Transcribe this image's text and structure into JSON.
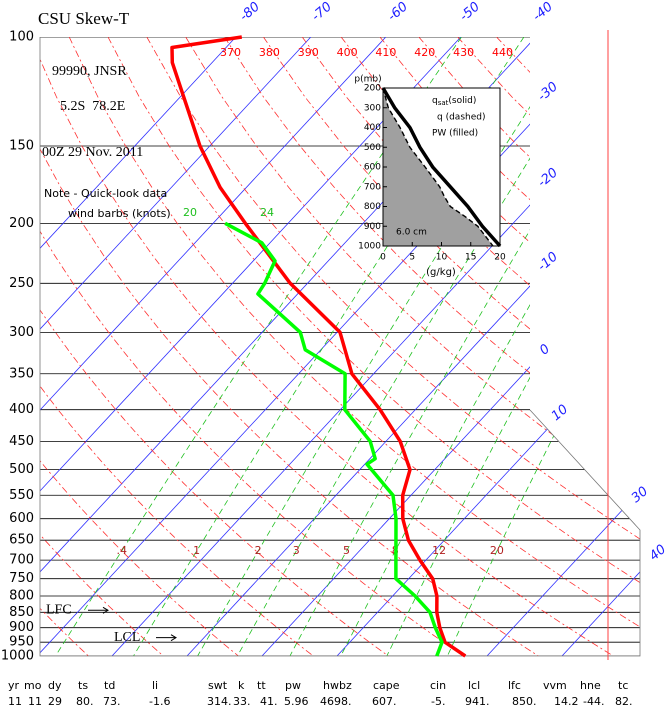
{
  "chart_data": {
    "type": "skewt",
    "title": "CSU Skew-T",
    "station": "99990, JNSR",
    "location": "5.2S  78.2E",
    "time": "00Z 29 Nov. 2011",
    "notes": [
      "Note - Quick-look data",
      "wind barbs (knots)"
    ],
    "ylim": [
      100,
      1000
    ],
    "log_y": true,
    "yticks": [
      100,
      150,
      200,
      250,
      300,
      350,
      400,
      450,
      500,
      550,
      600,
      650,
      700,
      750,
      800,
      850,
      900,
      950,
      1000
    ],
    "xticks": [
      -80,
      -70,
      -60,
      -50,
      -40,
      -30,
      -20,
      -10,
      0,
      10,
      30,
      40
    ],
    "theta_labels": [
      370,
      380,
      390,
      400,
      410,
      420,
      430,
      440
    ],
    "mixing_ratio_labels": [
      {
        "value": 0.4,
        "label": ".4"
      },
      1,
      2,
      3,
      5,
      8,
      12,
      20
    ],
    "moist_labels": [
      20,
      24
    ],
    "series": [
      {
        "color": "#ff0000",
        "p": [
          100,
          104,
          110,
          150,
          175,
          200,
          250,
          300,
          350,
          400,
          450,
          500,
          550,
          600,
          650,
          700,
          750,
          800,
          850,
          900,
          950,
          1000
        ],
        "values": [
          -79.2,
          -87.2,
          -85.3,
          -71.3,
          -63.5,
          -55.7,
          -42.3,
          -29.6,
          -22.9,
          -14.7,
          -8.1,
          -3.3,
          -1.1,
          1.8,
          5.2,
          9.2,
          13.2,
          15.9,
          17.9,
          20.2,
          22.7,
          27.1
        ]
      },
      {
        "color": "#00ff00",
        "p": [
          200,
          215,
          230,
          250,
          260,
          300,
          320,
          350,
          400,
          450,
          480,
          490,
          550,
          600,
          700,
          750,
          800,
          850,
          900,
          950,
          1000
        ],
        "values": [
          -58.4,
          -51.1,
          -47.1,
          -45.7,
          -45.3,
          -34.9,
          -32.1,
          -23.8,
          -19.4,
          -12.1,
          -9.3,
          -9.7,
          -2.4,
          0.9,
          6.0,
          8.3,
          13.0,
          17.0,
          19.6,
          22.3,
          23.3
        ]
      }
    ],
    "annotations": [
      {
        "text": "LFC",
        "p": 850
      },
      {
        "text": "LCL",
        "p": 941
      }
    ],
    "inset": {
      "ylabel": "p(mb)",
      "xlabel": "(g/kg)",
      "ylim": [
        200,
        1000
      ],
      "yticks": [
        200,
        300,
        400,
        500,
        600,
        700,
        800,
        900,
        1000
      ],
      "xlim": [
        0,
        20
      ],
      "xticks": [
        0,
        5,
        10,
        15,
        20
      ],
      "legend": [
        {
          "text": "q",
          "sub": "sat",
          "suffix": "(solid)"
        },
        "q (dashed)",
        "PW (filled)"
      ],
      "pw_label": "6.0 cm",
      "series": [
        {
          "color": "#000000",
          "style": "solid",
          "p": [
            200,
            300,
            400,
            500,
            600,
            700,
            800,
            900,
            1000
          ],
          "values": [
            0,
            2,
            4.6,
            6.3,
            8.5,
            11.5,
            14.5,
            17,
            20
          ]
        },
        {
          "color": "#000000",
          "style": "dashed",
          "fill": "#a0a0a0",
          "p": [
            200,
            300,
            400,
            500,
            600,
            700,
            750,
            800,
            850,
            900,
            1000
          ],
          "values": [
            0,
            0.9,
            2.9,
            4.6,
            7.2,
            9.7,
            10.5,
            11.5,
            14,
            16.2,
            18.8
          ]
        }
      ]
    },
    "table": {
      "headers": [
        "yr",
        "mo",
        "dy",
        "ts",
        "td",
        "li",
        "swt",
        "k",
        "tt",
        "pw",
        "hwbz",
        "cape",
        "cin",
        "lcl",
        "lfc",
        "vvm",
        "hne",
        "tc"
      ],
      "values": [
        "11",
        "11",
        "29",
        "80.",
        "73.",
        "-1.6",
        "314.",
        "33.",
        "41.",
        "5.96",
        "4698.",
        "607.",
        "-5.",
        "941.",
        "850.",
        "14.2",
        "-44.",
        "82."
      ]
    }
  }
}
